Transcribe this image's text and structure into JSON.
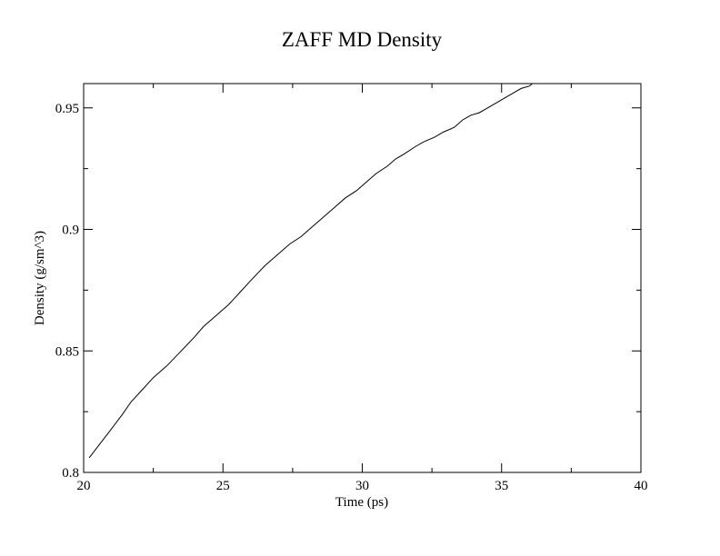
{
  "chart_data": {
    "type": "line",
    "title": "ZAFF MD Density",
    "xlabel": "Time (ps)",
    "ylabel": "Density (g/sm^3)",
    "xlim": [
      20,
      40
    ],
    "ylim": [
      0.8,
      0.96
    ],
    "x_ticks": [
      "20",
      "25",
      "30",
      "35",
      "40"
    ],
    "y_ticks": [
      "0.8",
      "0.85",
      "0.9",
      "0.95"
    ],
    "x_tick_values": [
      20,
      25,
      30,
      35,
      40
    ],
    "y_tick_values": [
      0.8,
      0.85,
      0.9,
      0.95
    ],
    "grid": false,
    "line_color": "#000000",
    "series": [
      {
        "x": [
          20.2,
          20.6,
          21.0,
          21.4,
          21.7,
          22.1,
          22.5,
          23.0,
          23.5,
          24.0,
          24.3,
          24.8,
          25.2,
          25.6,
          26.0,
          26.5,
          27.0,
          27.4,
          27.8,
          28.2,
          28.6,
          29.0,
          29.4,
          29.8,
          30.2,
          30.5,
          30.9,
          31.2,
          31.5,
          31.9,
          32.2,
          32.6,
          32.9,
          33.3,
          33.6,
          33.9,
          34.2,
          34.5,
          34.8,
          35.1,
          35.4,
          35.7,
          36.0,
          36.1
        ],
        "y": [
          0.806,
          0.812,
          0.818,
          0.824,
          0.829,
          0.834,
          0.839,
          0.844,
          0.85,
          0.856,
          0.86,
          0.865,
          0.869,
          0.874,
          0.879,
          0.885,
          0.89,
          0.894,
          0.897,
          0.901,
          0.905,
          0.909,
          0.913,
          0.916,
          0.92,
          0.923,
          0.926,
          0.929,
          0.931,
          0.934,
          0.936,
          0.938,
          0.94,
          0.942,
          0.945,
          0.947,
          0.948,
          0.95,
          0.952,
          0.954,
          0.956,
          0.958,
          0.959,
          0.96
        ]
      }
    ]
  }
}
